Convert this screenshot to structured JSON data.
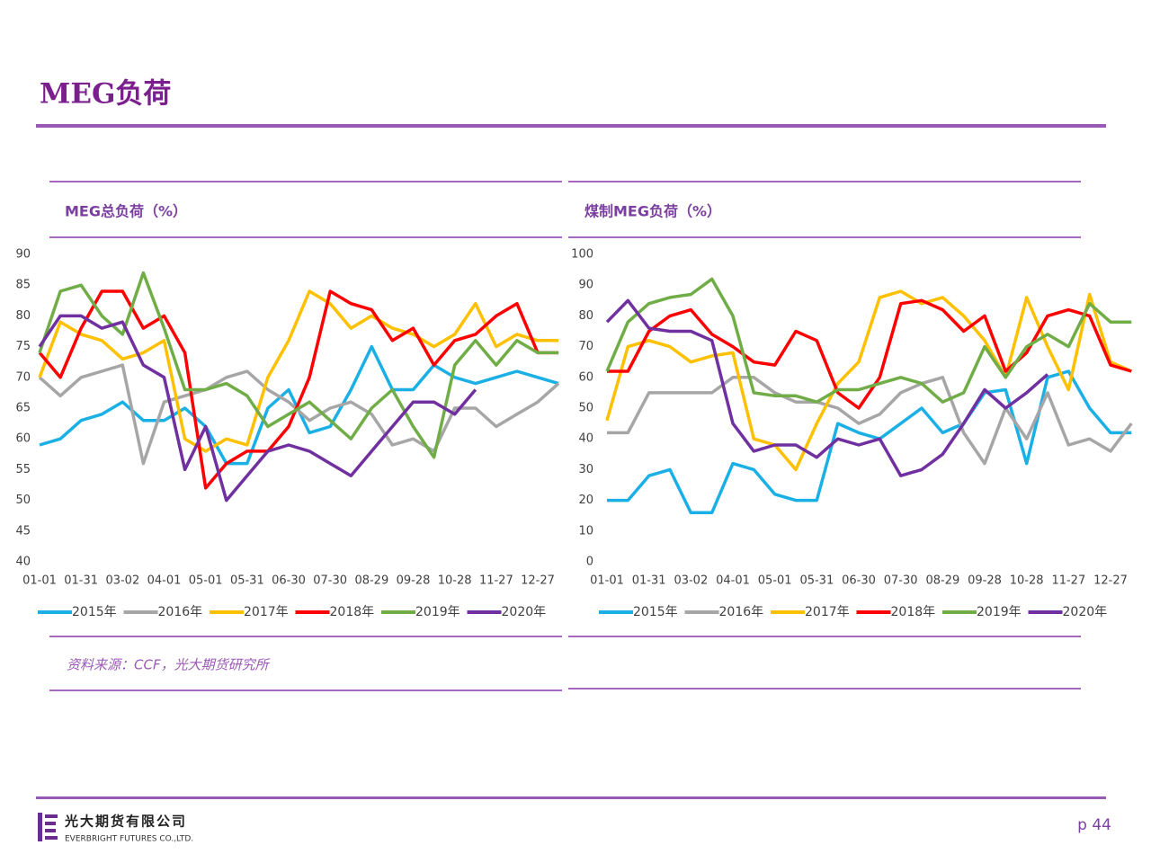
{
  "header": {
    "title": "MEG负荷"
  },
  "chart_data": [
    {
      "type": "line",
      "title": "MEG总负荷（%）",
      "categories": [
        "01-01",
        null,
        "01-31",
        null,
        "03-02",
        null,
        "04-01",
        null,
        "05-01",
        null,
        "05-31",
        null,
        "06-30",
        null,
        "07-30",
        null,
        "08-29",
        null,
        "09-28",
        null,
        "10-28",
        null,
        "11-27",
        null,
        "12-27",
        null
      ],
      "ylim": [
        40,
        90
      ],
      "yticks": [
        40,
        45,
        50,
        55,
        60,
        65,
        70,
        75,
        80,
        85,
        90
      ],
      "series": [
        {
          "name": "2015年",
          "color": "#1ab0e6",
          "values": [
            59,
            60,
            63,
            64,
            66,
            63,
            63,
            65,
            62,
            56,
            56,
            65,
            68,
            61,
            62,
            68,
            75,
            68,
            68,
            72,
            70,
            69,
            70,
            71,
            70,
            69
          ]
        },
        {
          "name": "2016年",
          "color": "#a6a6a6",
          "values": [
            70,
            67,
            70,
            71,
            72,
            56,
            66,
            67,
            68,
            70,
            71,
            68,
            66,
            63,
            65,
            66,
            64,
            59,
            60,
            58,
            65,
            65,
            62,
            64,
            66,
            69
          ]
        },
        {
          "name": "2017年",
          "color": "#ffc000",
          "values": [
            70,
            79,
            77,
            76,
            73,
            74,
            76,
            60,
            58,
            60,
            59,
            70,
            76,
            84,
            82,
            78,
            80,
            78,
            77,
            75,
            77,
            82,
            75,
            77,
            76,
            76
          ]
        },
        {
          "name": "2018年",
          "color": "#ff0000",
          "values": [
            74,
            70,
            78,
            84,
            84,
            78,
            80,
            74,
            52,
            56,
            58,
            58,
            62,
            70,
            84,
            82,
            81,
            76,
            78,
            72,
            76,
            77,
            80,
            82,
            74,
            74
          ]
        },
        {
          "name": "2019年",
          "color": "#70ad47",
          "values": [
            74,
            84,
            85,
            80,
            77,
            87,
            78,
            68,
            68,
            69,
            67,
            62,
            64,
            66,
            63,
            60,
            65,
            68,
            62,
            57,
            72,
            76,
            72,
            76,
            74,
            74
          ]
        },
        {
          "name": "2020年",
          "color": "#7030a0",
          "values": [
            75,
            80,
            80,
            78,
            79,
            72,
            70,
            55,
            62,
            50,
            54,
            58,
            59,
            58,
            56,
            54,
            58,
            62,
            66,
            66,
            64,
            68,
            null,
            null,
            null,
            null
          ]
        }
      ]
    },
    {
      "type": "line",
      "title": "煤制MEG负荷（%）",
      "categories": [
        "01-01",
        null,
        "01-31",
        null,
        "03-02",
        null,
        "04-01",
        null,
        "05-01",
        null,
        "05-31",
        null,
        "06-30",
        null,
        "07-30",
        null,
        "08-29",
        null,
        "09-28",
        null,
        "10-28",
        null,
        "11-27",
        null,
        "12-27",
        null
      ],
      "ylim": [
        0,
        100
      ],
      "yticks": [
        0,
        10,
        20,
        30,
        40,
        50,
        60,
        70,
        80,
        90,
        100
      ],
      "series": [
        {
          "name": "2015年",
          "color": "#1ab0e6",
          "values": [
            20,
            20,
            28,
            30,
            16,
            16,
            32,
            30,
            22,
            20,
            20,
            45,
            42,
            40,
            45,
            50,
            42,
            45,
            55,
            56,
            32,
            60,
            62,
            50,
            42,
            42
          ]
        },
        {
          "name": "2016年",
          "color": "#a6a6a6",
          "values": [
            42,
            42,
            55,
            55,
            55,
            55,
            60,
            60,
            55,
            52,
            52,
            50,
            45,
            48,
            55,
            58,
            60,
            42,
            32,
            50,
            40,
            55,
            38,
            40,
            36,
            45
          ]
        },
        {
          "name": "2017年",
          "color": "#ffc000",
          "values": [
            46,
            70,
            72,
            70,
            65,
            67,
            68,
            40,
            38,
            30,
            45,
            58,
            65,
            86,
            88,
            84,
            86,
            80,
            72,
            60,
            86,
            70,
            56,
            87,
            65,
            62
          ]
        },
        {
          "name": "2018年",
          "color": "#ff0000",
          "values": [
            62,
            62,
            75,
            80,
            82,
            74,
            70,
            65,
            64,
            75,
            72,
            55,
            50,
            60,
            84,
            85,
            82,
            75,
            80,
            62,
            68,
            80,
            82,
            80,
            64,
            62
          ]
        },
        {
          "name": "2019年",
          "color": "#70ad47",
          "values": [
            62,
            78,
            84,
            86,
            87,
            92,
            80,
            55,
            54,
            54,
            52,
            56,
            56,
            58,
            60,
            58,
            52,
            55,
            70,
            60,
            70,
            74,
            70,
            84,
            78,
            78
          ]
        },
        {
          "name": "2020年",
          "color": "#7030a0",
          "values": [
            78,
            85,
            76,
            75,
            75,
            72,
            45,
            36,
            38,
            38,
            34,
            40,
            38,
            40,
            28,
            30,
            35,
            45,
            56,
            50,
            55,
            61,
            null,
            null,
            null,
            null
          ]
        }
      ]
    }
  ],
  "source": "资料来源：CCF，光大期货研究所",
  "footer": {
    "company": "光大期货有限公司",
    "company_en": "EVERBRIGHT FUTURES CO.,LTD.",
    "page": "p 44"
  }
}
